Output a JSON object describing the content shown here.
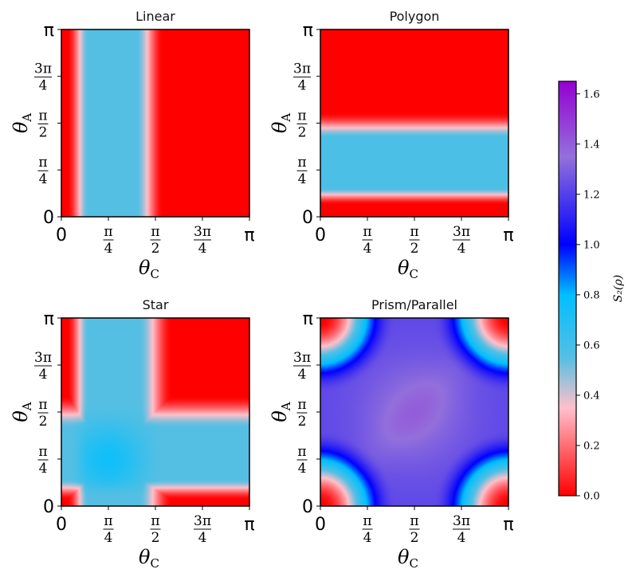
{
  "chart_data": [
    {
      "type": "heatmap",
      "title": "Linear",
      "xlabel": "θ_C",
      "ylabel": "θ_A",
      "xlim": [
        0,
        3.14159
      ],
      "ylim": [
        0,
        3.14159
      ],
      "description_values": "S2 depends only on θ_C: ~0 near θ_C=0, ~0.55 for θ_C in [0.6, 1.3], ~0 for θ_C > 1.8",
      "vmin": 0.0,
      "vmax": 1.65
    },
    {
      "type": "heatmap",
      "title": "Polygon",
      "xlabel": "θ_C",
      "ylabel": "θ_A",
      "xlim": [
        0,
        3.14159
      ],
      "ylim": [
        0,
        3.14159
      ],
      "vmin": 0.0,
      "vmax": 1.65
    },
    {
      "type": "heatmap",
      "title": "Star",
      "xlabel": "θ_C",
      "ylabel": "θ_A",
      "xlim": [
        0,
        3.14159
      ],
      "ylim": [
        0,
        3.14159
      ],
      "vmin": 0.0,
      "vmax": 1.65
    },
    {
      "type": "heatmap",
      "title": "Prism/Parallel",
      "xlabel": "θ_C",
      "ylabel": "θ_A",
      "xlim": [
        0,
        3.14159
      ],
      "ylim": [
        0,
        3.14159
      ],
      "vmin": 0.0,
      "vmax": 1.65
    }
  ],
  "axes": {
    "x_symbol": "θ",
    "x_sub": "C",
    "y_symbol": "θ",
    "y_sub": "A",
    "tick_values": [
      0,
      0.7854,
      1.5708,
      2.3562,
      3.14159
    ],
    "tick_labels": [
      {
        "kind": "plain",
        "text": "0"
      },
      {
        "kind": "frac",
        "num": "π",
        "den": "4"
      },
      {
        "kind": "frac",
        "num": "π",
        "den": "2"
      },
      {
        "kind": "frac",
        "num": "3π",
        "den": "4"
      },
      {
        "kind": "plain",
        "text": "π"
      }
    ]
  },
  "colorbar": {
    "label": "S₂(ρ)",
    "min": 0.0,
    "max": 1.65,
    "ticks": [
      0.0,
      0.2,
      0.4,
      0.6,
      0.8,
      1.0,
      1.2,
      1.4,
      1.6
    ],
    "tick_labels": [
      "0.0",
      "0.2",
      "0.4",
      "0.6",
      "0.8",
      "1.0",
      "1.2",
      "1.4",
      "1.6"
    ],
    "colors": [
      {
        "value": 0.0,
        "color": "#ff0000"
      },
      {
        "value": 0.35,
        "color": "#ffc0cb"
      },
      {
        "value": 0.55,
        "color": "#55bfe3"
      },
      {
        "value": 0.8,
        "color": "#00bfff"
      },
      {
        "value": 1.0,
        "color": "#0000ff"
      },
      {
        "value": 1.35,
        "color": "#9370db"
      },
      {
        "value": 1.65,
        "color": "#9400d3"
      }
    ]
  }
}
